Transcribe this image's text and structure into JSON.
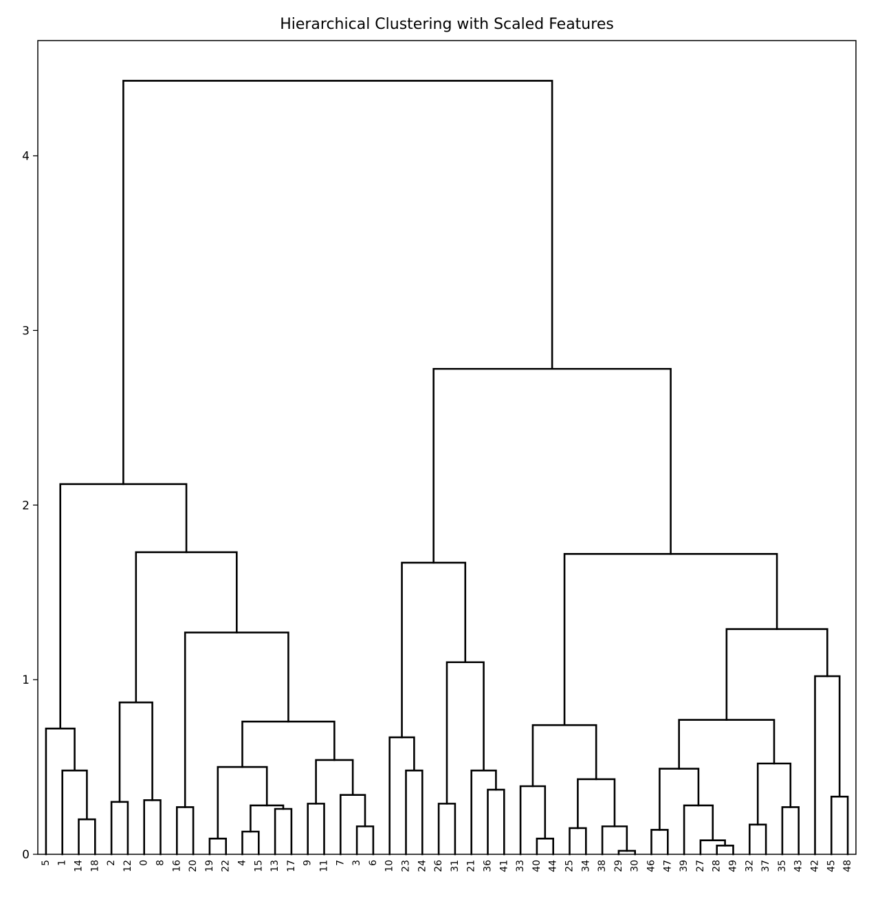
{
  "chart_data": {
    "type": "dendrogram",
    "title": "Hierarchical Clustering with Scaled Features",
    "xlabel": "",
    "ylabel": "",
    "ylim": [
      0,
      4.66
    ],
    "yticks": [
      0,
      1,
      2,
      3,
      4
    ],
    "leaf_order": [
      "5",
      "1",
      "14",
      "18",
      "2",
      "12",
      "0",
      "8",
      "16",
      "20",
      "19",
      "22",
      "4",
      "15",
      "13",
      "17",
      "9",
      "11",
      "7",
      "3",
      "6",
      "10",
      "23",
      "24",
      "26",
      "31",
      "21",
      "36",
      "41",
      "33",
      "40",
      "44",
      "25",
      "34",
      "38",
      "29",
      "30",
      "46",
      "47",
      "39",
      "27",
      "28",
      "49",
      "32",
      "37",
      "35",
      "43",
      "42",
      "45",
      "48"
    ],
    "merges": [
      {
        "id": "c1",
        "left": "14",
        "right": "18",
        "height": 0.2
      },
      {
        "id": "c2",
        "left": "1",
        "right": "c1",
        "height": 0.48
      },
      {
        "id": "c3",
        "left": "5",
        "right": "c2",
        "height": 0.72
      },
      {
        "id": "c4",
        "left": "2",
        "right": "12",
        "height": 0.3
      },
      {
        "id": "c5",
        "left": "0",
        "right": "8",
        "height": 0.31
      },
      {
        "id": "c6",
        "left": "c4",
        "right": "c5",
        "height": 0.87
      },
      {
        "id": "c7",
        "left": "16",
        "right": "20",
        "height": 0.27
      },
      {
        "id": "c8",
        "left": "19",
        "right": "22",
        "height": 0.09
      },
      {
        "id": "c9",
        "left": "4",
        "right": "15",
        "height": 0.13
      },
      {
        "id": "c10",
        "left": "13",
        "right": "17",
        "height": 0.26
      },
      {
        "id": "c11",
        "left": "c9",
        "right": "c10",
        "height": 0.28
      },
      {
        "id": "c12",
        "left": "c8",
        "right": "c11",
        "height": 0.5
      },
      {
        "id": "c13",
        "left": "3",
        "right": "6",
        "height": 0.16
      },
      {
        "id": "c14",
        "left": "7",
        "right": "c13",
        "height": 0.34
      },
      {
        "id": "c15",
        "left": "9",
        "right": "11",
        "height": 0.29
      },
      {
        "id": "c16",
        "left": "c15",
        "right": "c14",
        "height": 0.54
      },
      {
        "id": "c17",
        "left": "c12",
        "right": "c16",
        "height": 0.76
      },
      {
        "id": "c18",
        "left": "c7",
        "right": "c17",
        "height": 1.27
      },
      {
        "id": "c19",
        "left": "c6",
        "right": "c18",
        "height": 1.73
      },
      {
        "id": "c20",
        "left": "c3",
        "right": "c19",
        "height": 2.12
      },
      {
        "id": "c21",
        "left": "23",
        "right": "24",
        "height": 0.48
      },
      {
        "id": "c22",
        "left": "10",
        "right": "c21",
        "height": 0.67
      },
      {
        "id": "c23",
        "left": "26",
        "right": "31",
        "height": 0.29
      },
      {
        "id": "c24",
        "left": "36",
        "right": "41",
        "height": 0.37
      },
      {
        "id": "c25",
        "left": "21",
        "right": "c24",
        "height": 0.48
      },
      {
        "id": "c26",
        "left": "c23",
        "right": "c25",
        "height": 1.1
      },
      {
        "id": "c27",
        "left": "c22",
        "right": "c26",
        "height": 1.67
      },
      {
        "id": "c28",
        "left": "40",
        "right": "44",
        "height": 0.09
      },
      {
        "id": "c29",
        "left": "33",
        "right": "c28",
        "height": 0.39
      },
      {
        "id": "c30",
        "left": "25",
        "right": "34",
        "height": 0.15
      },
      {
        "id": "c31",
        "left": "29",
        "right": "30",
        "height": 0.02
      },
      {
        "id": "c32",
        "left": "38",
        "right": "c31",
        "height": 0.16
      },
      {
        "id": "c33",
        "left": "c30",
        "right": "c32",
        "height": 0.43
      },
      {
        "id": "c34",
        "left": "c29",
        "right": "c33",
        "height": 0.74
      },
      {
        "id": "c35",
        "left": "28",
        "right": "49",
        "height": 0.05
      },
      {
        "id": "c36",
        "left": "27",
        "right": "c35",
        "height": 0.08
      },
      {
        "id": "c37",
        "left": "39",
        "right": "c36",
        "height": 0.28
      },
      {
        "id": "c38",
        "left": "46",
        "right": "47",
        "height": 0.14
      },
      {
        "id": "c39",
        "left": "c38",
        "right": "c37",
        "height": 0.49
      },
      {
        "id": "c40",
        "left": "32",
        "right": "37",
        "height": 0.17
      },
      {
        "id": "c41",
        "left": "35",
        "right": "43",
        "height": 0.27
      },
      {
        "id": "c42",
        "left": "c40",
        "right": "c41",
        "height": 0.52
      },
      {
        "id": "c43",
        "left": "c39",
        "right": "c42",
        "height": 0.77
      },
      {
        "id": "c44",
        "left": "45",
        "right": "48",
        "height": 0.33
      },
      {
        "id": "c45",
        "left": "42",
        "right": "c44",
        "height": 1.02
      },
      {
        "id": "c46",
        "left": "c43",
        "right": "c45",
        "height": 1.29
      },
      {
        "id": "c47",
        "left": "c34",
        "right": "c46",
        "height": 1.72
      },
      {
        "id": "c48",
        "left": "c27",
        "right": "c47",
        "height": 2.78
      },
      {
        "id": "c49",
        "left": "c20",
        "right": "c48",
        "height": 4.43
      }
    ],
    "link_color": "#000000",
    "grid": false,
    "legend": "none"
  }
}
